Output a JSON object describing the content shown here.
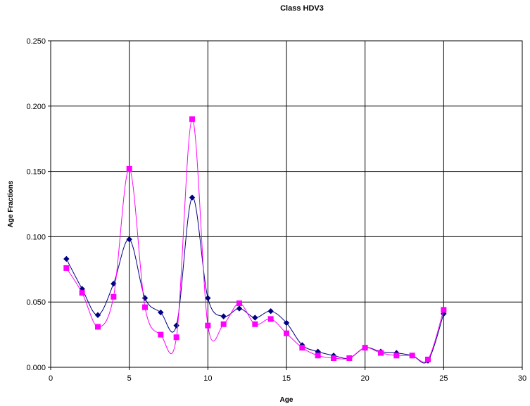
{
  "chart_data": {
    "type": "line",
    "title": "Class HDV3",
    "xlabel": "Age",
    "ylabel": "Age Fractions",
    "xlim": [
      0,
      30
    ],
    "ylim": [
      0,
      0.25
    ],
    "xticks": [
      0,
      5,
      10,
      15,
      20,
      25,
      30
    ],
    "xtick_labels": [
      "0",
      "5",
      "10",
      "15",
      "20",
      "25",
      "30"
    ],
    "yticks": [
      0,
      0.05,
      0.1,
      0.15,
      0.2,
      0.25
    ],
    "ytick_labels": [
      "0.000",
      "0.050",
      "0.100",
      "0.150",
      "0.200",
      "0.250"
    ],
    "grid": true,
    "smooth": true,
    "x": [
      1,
      2,
      3,
      4,
      5,
      6,
      7,
      8,
      9,
      10,
      11,
      12,
      13,
      14,
      15,
      16,
      17,
      18,
      19,
      20,
      21,
      22,
      23,
      24,
      25
    ],
    "series": [
      {
        "color": "#000080",
        "marker": "diamond",
        "values": [
          0.083,
          0.06,
          0.04,
          0.064,
          0.098,
          0.053,
          0.042,
          0.032,
          0.13,
          0.053,
          0.039,
          0.045,
          0.038,
          0.043,
          0.034,
          0.017,
          0.012,
          0.009,
          0.007,
          0.015,
          0.012,
          0.011,
          0.009,
          0.005,
          0.041
        ]
      },
      {
        "color": "#ff00ff",
        "marker": "square",
        "values": [
          0.076,
          0.057,
          0.031,
          0.054,
          0.152,
          0.046,
          0.025,
          0.023,
          0.19,
          0.032,
          0.033,
          0.049,
          0.033,
          0.037,
          0.026,
          0.015,
          0.009,
          0.007,
          0.007,
          0.015,
          0.011,
          0.009,
          0.009,
          0.006,
          0.044
        ]
      }
    ]
  }
}
